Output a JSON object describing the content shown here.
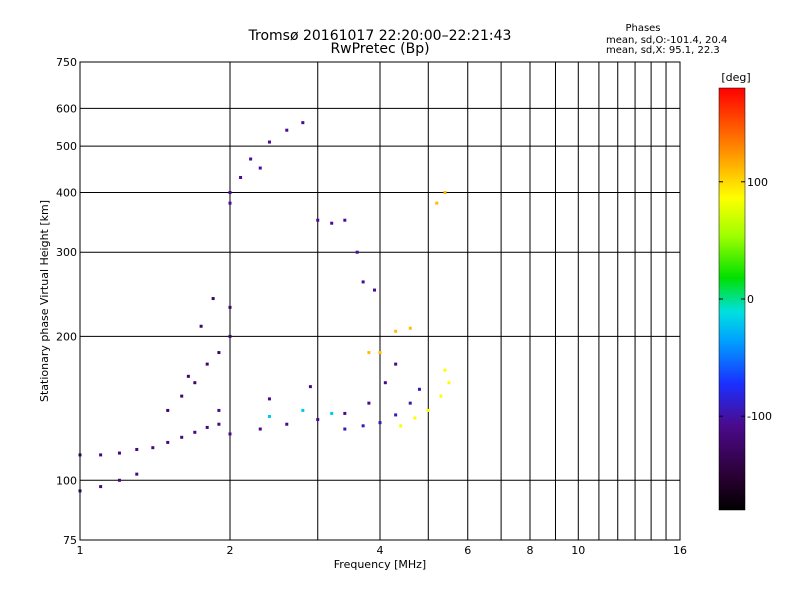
{
  "chart_data": {
    "type": "scatter",
    "title": "Tromsø 20161017 22:20:00–22:21:43",
    "subtitle": "RwPretec (Bp)",
    "xlabel": "Frequency [MHz]",
    "ylabel": "Stationary phase Virtual Height [km]",
    "xscale": "log",
    "yscale": "log",
    "xlim": [
      1,
      16
    ],
    "ylim": [
      75,
      750
    ],
    "x_ticks": [
      1,
      2,
      4,
      6,
      8,
      10,
      16
    ],
    "x_ticklabels": [
      "1",
      "2",
      "4",
      "6",
      "8",
      "10",
      "16"
    ],
    "y_ticks": [
      75,
      100,
      200,
      300,
      400,
      500,
      600,
      750
    ],
    "y_ticklabels": [
      "75",
      "100",
      "200",
      "300",
      "400",
      "500",
      "600",
      "750"
    ],
    "grid": true,
    "stats": {
      "header": "Phases",
      "line_o": "mean, sd,O:-101.4, 20.4",
      "line_x": "mean, sd,X:  95.1, 22.3"
    },
    "colorbar": {
      "label": "[deg]",
      "range": [
        -180,
        180
      ],
      "ticks": [
        100,
        0,
        -100
      ],
      "ticklabels": [
        "100",
        "0",
        "-100"
      ]
    },
    "series": [
      {
        "color_value": -115,
        "points": [
          [
            1.0,
            113
          ],
          [
            1.1,
            113
          ],
          [
            1.2,
            114
          ],
          [
            1.3,
            116
          ],
          [
            1.4,
            117
          ],
          [
            1.5,
            120
          ],
          [
            1.6,
            123
          ],
          [
            1.7,
            126
          ],
          [
            1.8,
            129
          ],
          [
            1.9,
            131
          ],
          [
            1.0,
            95
          ],
          [
            1.1,
            97
          ],
          [
            1.2,
            100
          ],
          [
            1.3,
            103
          ]
        ]
      },
      {
        "color_value": -125,
        "points": [
          [
            1.5,
            140
          ],
          [
            1.6,
            150
          ],
          [
            1.7,
            160
          ],
          [
            1.8,
            175
          ],
          [
            1.9,
            185
          ],
          [
            2.0,
            200
          ],
          [
            2.0,
            230
          ],
          [
            1.75,
            210
          ],
          [
            1.65,
            165
          ],
          [
            1.85,
            240
          ]
        ]
      },
      {
        "color_value": -110,
        "points": [
          [
            2.0,
            125
          ],
          [
            2.3,
            128
          ],
          [
            2.6,
            131
          ],
          [
            3.0,
            134
          ],
          [
            3.4,
            138
          ],
          [
            3.8,
            145
          ],
          [
            4.1,
            160
          ],
          [
            4.3,
            175
          ],
          [
            1.9,
            140
          ],
          [
            2.4,
            148
          ],
          [
            2.9,
            157
          ]
        ]
      },
      {
        "color_value": -95,
        "points": [
          [
            3.4,
            128
          ],
          [
            3.7,
            130
          ],
          [
            4.0,
            132
          ],
          [
            4.3,
            137
          ],
          [
            4.6,
            145
          ],
          [
            4.8,
            155
          ]
        ]
      },
      {
        "color_value": -105,
        "points": [
          [
            2.0,
            400
          ],
          [
            2.1,
            430
          ],
          [
            2.2,
            470
          ],
          [
            2.4,
            510
          ],
          [
            2.6,
            540
          ],
          [
            2.8,
            560
          ],
          [
            2.0,
            380
          ],
          [
            2.3,
            450
          ]
        ]
      },
      {
        "color_value": -105,
        "points": [
          [
            3.0,
            350
          ],
          [
            3.2,
            345
          ],
          [
            3.4,
            350
          ],
          [
            3.7,
            260
          ],
          [
            3.9,
            250
          ],
          [
            3.6,
            300
          ]
        ]
      },
      {
        "color_value": 85,
        "points": [
          [
            4.4,
            130
          ],
          [
            4.7,
            135
          ],
          [
            5.0,
            140
          ],
          [
            5.3,
            150
          ],
          [
            5.5,
            160
          ],
          [
            5.4,
            170
          ]
        ]
      },
      {
        "color_value": 110,
        "points": [
          [
            4.3,
            205
          ],
          [
            4.6,
            208
          ],
          [
            3.8,
            185
          ],
          [
            4.0,
            185
          ],
          [
            5.2,
            380
          ],
          [
            5.4,
            400
          ]
        ]
      },
      {
        "color_value": -20,
        "points": [
          [
            2.4,
            136
          ],
          [
            2.8,
            140
          ],
          [
            3.2,
            138
          ]
        ]
      }
    ]
  }
}
